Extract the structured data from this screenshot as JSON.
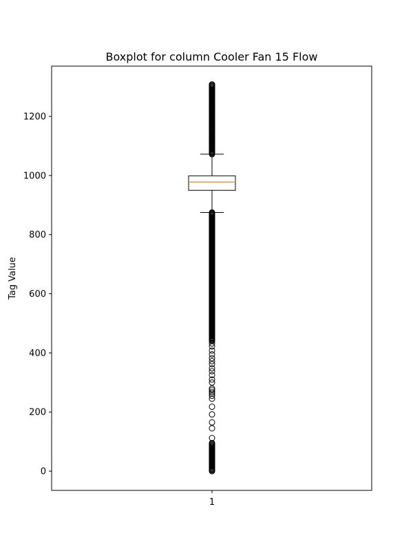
{
  "chart_data": {
    "type": "boxplot",
    "title": "Boxplot for column Cooler Fan 15 Flow",
    "xlabel": "",
    "ylabel": "Tag Value",
    "categories": [
      "1"
    ],
    "ylim": [
      -65,
      1370
    ],
    "yticks": [
      0,
      200,
      400,
      600,
      800,
      1000,
      1200
    ],
    "grid": false,
    "colors": {
      "box": "#000000",
      "median": "#ff7f0e",
      "flier": "#000000"
    },
    "box": {
      "whisker_low": 875,
      "q1": 950,
      "median": 978,
      "q3": 999,
      "whisker_high": 1072
    },
    "outliers": {
      "dense_low_ranges": [
        [
          0,
          95
        ],
        [
          440,
          875
        ]
      ],
      "dense_high_ranges": [
        [
          1072,
          1308
        ]
      ],
      "scattered": [
        112,
        145,
        165,
        192,
        218,
        245,
        255,
        262,
        268,
        275,
        280,
        300,
        310,
        325,
        338,
        348,
        362,
        372,
        382,
        395,
        408,
        422,
        432
      ]
    }
  }
}
